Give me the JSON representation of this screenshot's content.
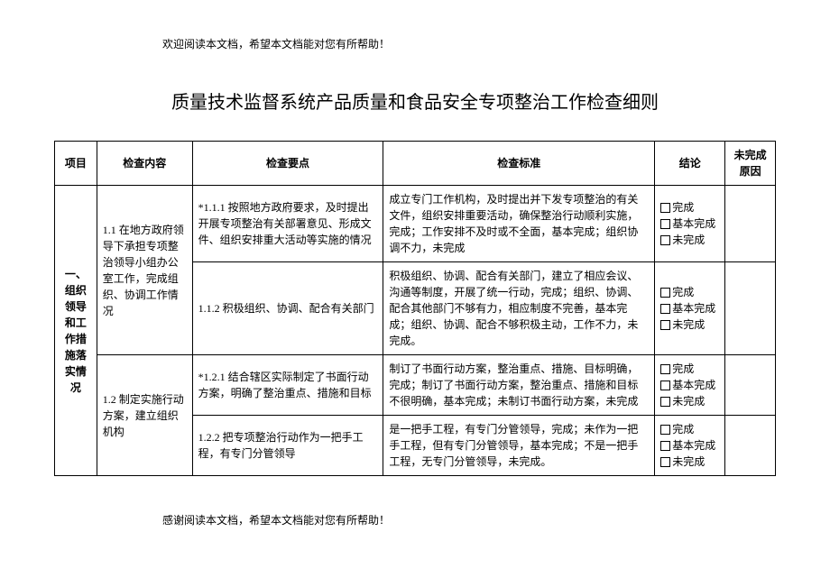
{
  "header_note": "欢迎阅读本文档，希望本文档能对您有所帮助！",
  "footer_note": "感谢阅读本文档，希望本文档能对您有所帮助！",
  "title": "质量技术监督系统产品质量和食品安全专项整治工作检查细则",
  "columns": {
    "project": "项目",
    "content": "检查内容",
    "key": "检查要点",
    "standard": "检查标准",
    "conclusion": "结论",
    "reason": "未完成原因"
  },
  "conclusion_options": {
    "done": "完成",
    "basic": "基本完成",
    "not": "未完成"
  },
  "section": {
    "project": "一、组织领导和工作措施落实情况",
    "group1": {
      "content": "1.1 在地方政府领导下承担专项整治领导小组办公室工作，完成组织、协调工作情况",
      "row1": {
        "key": "*1.1.1 按照地方政府要求，及时提出开展专项整治有关部署意见、形成文件、组织安排重大活动等实施的情况",
        "standard": "成立专门工作机构，及时提出并下发专项整治的有关文件，组织安排重要活动，确保整治行动顺利实施，完成；工作安排不及时或不全面，基本完成；组织协调不力，未完成"
      },
      "row2": {
        "key": "1.1.2 积极组织、协调、配合有关部门",
        "standard": "积极组织、协调、配合有关部门，建立了相应会议、沟通等制度，开展了统一行动，完成；组织、协调、配合其他部门不够有力，相应制度不完善，基本完成；组织、协调、配合不够积极主动，工作不力，未完成。"
      }
    },
    "group2": {
      "content": "1.2 制定实施行动方案，建立组织机构",
      "row1": {
        "key": "*1.2.1 结合辖区实际制定了书面行动方案，明确了整治重点、措施和目标",
        "standard": "制订了书面行动方案，整治重点、措施、目标明确，完成；制订了书面行动方案，整治重点、措施和目标不很明确，基本完成；未制订书面行动方案，未完成"
      },
      "row2": {
        "key": "1.2.2 把专项整治行动作为一把手工程，有专门分管领导",
        "standard": "是一把手工程，有专门分管领导，完成；未作为一把手工程，但有专门分管领导，基本完成；不是一把手工程，无专门分管领导，未完成。"
      }
    }
  }
}
